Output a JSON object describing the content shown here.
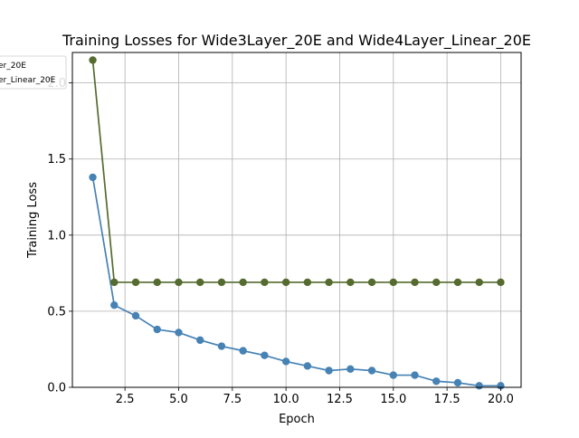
{
  "chart_data": {
    "type": "line",
    "title": "Training Losses for Wide3Layer_20E and Wide4Layer_Linear_20E",
    "xlabel": "Epoch",
    "ylabel": "Training Loss",
    "xlim": [
      0.05,
      20.95
    ],
    "ylim": [
      0.0,
      2.2
    ],
    "xticks": [
      2.5,
      5.0,
      7.5,
      10.0,
      12.5,
      15.0,
      17.5,
      20.0
    ],
    "xtick_labels": [
      "2.5",
      "5.0",
      "7.5",
      "10.0",
      "12.5",
      "15.0",
      "17.5",
      "20.0"
    ],
    "yticks": [
      0.0,
      0.5,
      1.0,
      1.5,
      2.0
    ],
    "ytick_labels": [
      "0.0",
      "0.5",
      "1.0",
      "1.5",
      "2.0"
    ],
    "grid": true,
    "legend_position": "top-left",
    "legend_visible_text": [
      "er_20E",
      "er_Linear_20E"
    ],
    "x": [
      1,
      2,
      3,
      4,
      5,
      6,
      7,
      8,
      9,
      10,
      11,
      12,
      13,
      14,
      15,
      16,
      17,
      18,
      19,
      20
    ],
    "series": [
      {
        "color": "#4682b4",
        "values": [
          1.38,
          0.54,
          0.47,
          0.38,
          0.36,
          0.31,
          0.27,
          0.24,
          0.21,
          0.17,
          0.14,
          0.11,
          0.12,
          0.11,
          0.08,
          0.08,
          0.04,
          0.03,
          0.01,
          0.01
        ]
      },
      {
        "color": "#556b2f",
        "values": [
          2.15,
          0.69,
          0.69,
          0.69,
          0.69,
          0.69,
          0.69,
          0.69,
          0.69,
          0.69,
          0.69,
          0.69,
          0.69,
          0.69,
          0.69,
          0.69,
          0.69,
          0.69,
          0.69,
          0.69
        ]
      }
    ]
  }
}
